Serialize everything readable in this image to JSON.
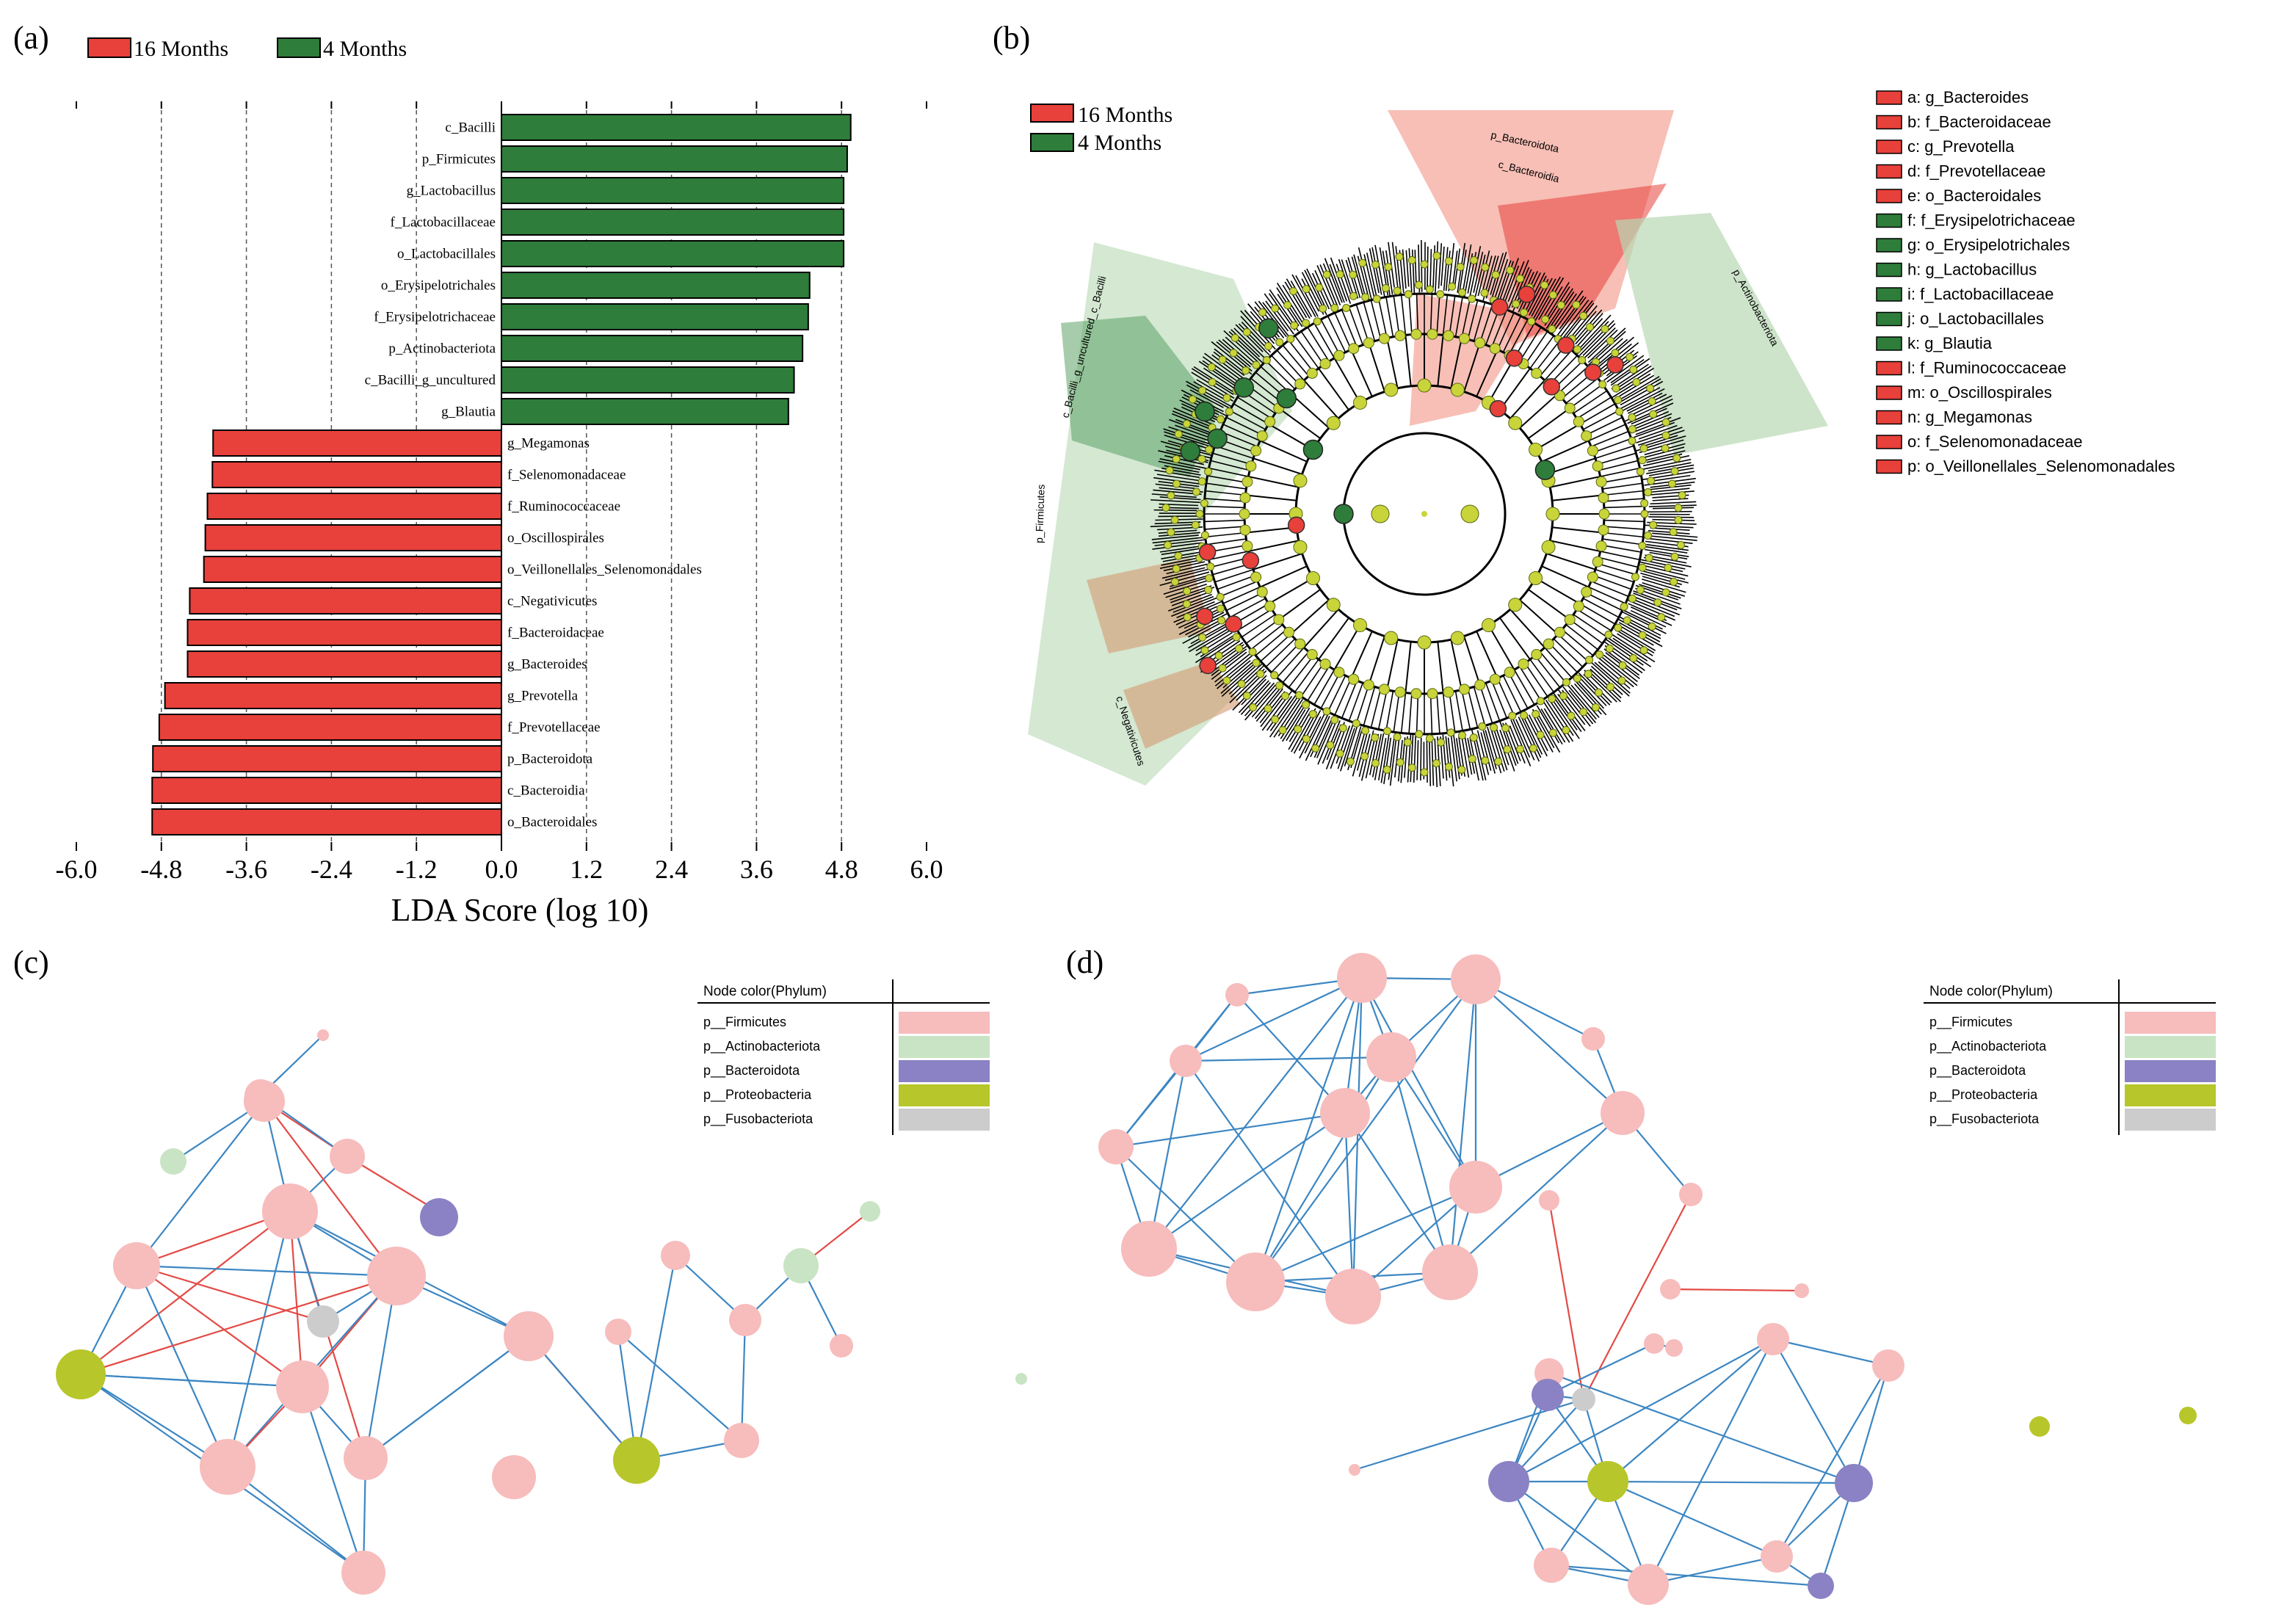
{
  "panels": {
    "a": "(a)",
    "b": "(b)",
    "c": "(c)",
    "d": "(d)"
  },
  "colors": {
    "red": "#e8403a",
    "green": "#2e7d3a",
    "pink": "#f7bcbc",
    "light_green": "#c9e4c4",
    "purple": "#8a82c4",
    "olive": "#b7c62a",
    "gray": "#cccccc",
    "edge_blue": "#3c86c2",
    "edge_red": "#e34a45"
  },
  "chart_data": [
    {
      "type": "bar",
      "orientation": "horizontal",
      "title": "",
      "xlabel": "LDA Score (log 10)",
      "xlim": [
        -6.0,
        6.0
      ],
      "xticks": [
        "-6.0",
        "-4.8",
        "-3.6",
        "-2.4",
        "-1.2",
        "0.0",
        "1.2",
        "2.4",
        "3.6",
        "4.8",
        "6.0"
      ],
      "legend": [
        {
          "name": "16 Months",
          "color": "#e8403a"
        },
        {
          "name": "4 Months",
          "color": "#2e7d3a"
        }
      ],
      "categories": [
        "c_Bacilli",
        "p_Firmicutes",
        "g_Lactobacillus",
        "f_Lactobacillaceae",
        "o_Lactobacillales",
        "o_Erysipelotrichales",
        "f_Erysipelotrichaceae",
        "p_Actinobacteriota",
        "c_Bacilli_g_uncultured",
        "g_Blautia",
        "g_Megamonas",
        "f_Selenomonadaceae",
        "f_Ruminococcaceae",
        "o_Oscillospirales",
        "o_Veillonellales_Selenomonadales",
        "c_Negativicutes",
        "f_Bacteroidaceae",
        "g_Bacteroides",
        "g_Prevotella",
        "f_Prevotellaceae",
        "p_Bacteroidota",
        "c_Bacteroidia",
        "o_Bacteroidales"
      ],
      "values": [
        4.93,
        4.88,
        4.83,
        4.83,
        4.83,
        4.35,
        4.33,
        4.25,
        4.13,
        4.05,
        -4.07,
        -4.08,
        -4.15,
        -4.18,
        -4.2,
        -4.4,
        -4.43,
        -4.43,
        -4.75,
        -4.83,
        -4.92,
        -4.93,
        -4.93
      ]
    },
    {
      "type": "cladogram",
      "legend": [
        {
          "name": "16 Months",
          "color": "#e8403a"
        },
        {
          "name": "4 Months",
          "color": "#2e7d3a"
        }
      ],
      "clade_labels": [
        {
          "text": "a: g_Bacteroides",
          "group": "16 Months"
        },
        {
          "text": "b: f_Bacteroidaceae",
          "group": "16 Months"
        },
        {
          "text": "c: g_Prevotella",
          "group": "16 Months"
        },
        {
          "text": "d: f_Prevotellaceae",
          "group": "16 Months"
        },
        {
          "text": "e: o_Bacteroidales",
          "group": "16 Months"
        },
        {
          "text": "f: f_Erysipelotrichaceae",
          "group": "4 Months"
        },
        {
          "text": "g: o_Erysipelotrichales",
          "group": "4 Months"
        },
        {
          "text": "h: g_Lactobacillus",
          "group": "4 Months"
        },
        {
          "text": "i: f_Lactobacillaceae",
          "group": "4 Months"
        },
        {
          "text": "j: o_Lactobacillales",
          "group": "4 Months"
        },
        {
          "text": "k: g_Blautia",
          "group": "4 Months"
        },
        {
          "text": "l: f_Ruminococcaceae",
          "group": "16 Months"
        },
        {
          "text": "m: o_Oscillospirales",
          "group": "16 Months"
        },
        {
          "text": "n: g_Megamonas",
          "group": "16 Months"
        },
        {
          "text": "o: f_Selenomonadaceae",
          "group": "16 Months"
        },
        {
          "text": "p: o_Veillonellales_Selenomonadales",
          "group": "16 Months"
        }
      ],
      "sector_labels": [
        "p_Bacteroidota",
        "c_Bacteroidia",
        "p_Actinobacteriota",
        "p_Firmicutes",
        "c_Bacilli_g_uncultured_c_Bacilli",
        "c_Negativicutes"
      ]
    },
    {
      "type": "network",
      "legend_title": "Node color(Phylum)",
      "legend": [
        {
          "name": "p__Firmicutes",
          "color": "#f7bcbc"
        },
        {
          "name": "p__Actinobacteriota",
          "color": "#c9e4c4"
        },
        {
          "name": "p__Bacteroidota",
          "color": "#8a82c4"
        },
        {
          "name": "p__Proteobacteria",
          "color": "#b7c62a"
        },
        {
          "name": "p__Fusobacteriota",
          "color": "#cccccc"
        }
      ]
    },
    {
      "type": "network",
      "legend_title": "Node color(Phylum)",
      "legend": [
        {
          "name": "p__Firmicutes",
          "color": "#f7bcbc"
        },
        {
          "name": "p__Actinobacteriota",
          "color": "#c9e4c4"
        },
        {
          "name": "p__Bacteroidota",
          "color": "#8a82c4"
        },
        {
          "name": "p__Proteobacteria",
          "color": "#b7c62a"
        },
        {
          "name": "p__Fusobacteriota",
          "color": "#cccccc"
        }
      ]
    }
  ]
}
